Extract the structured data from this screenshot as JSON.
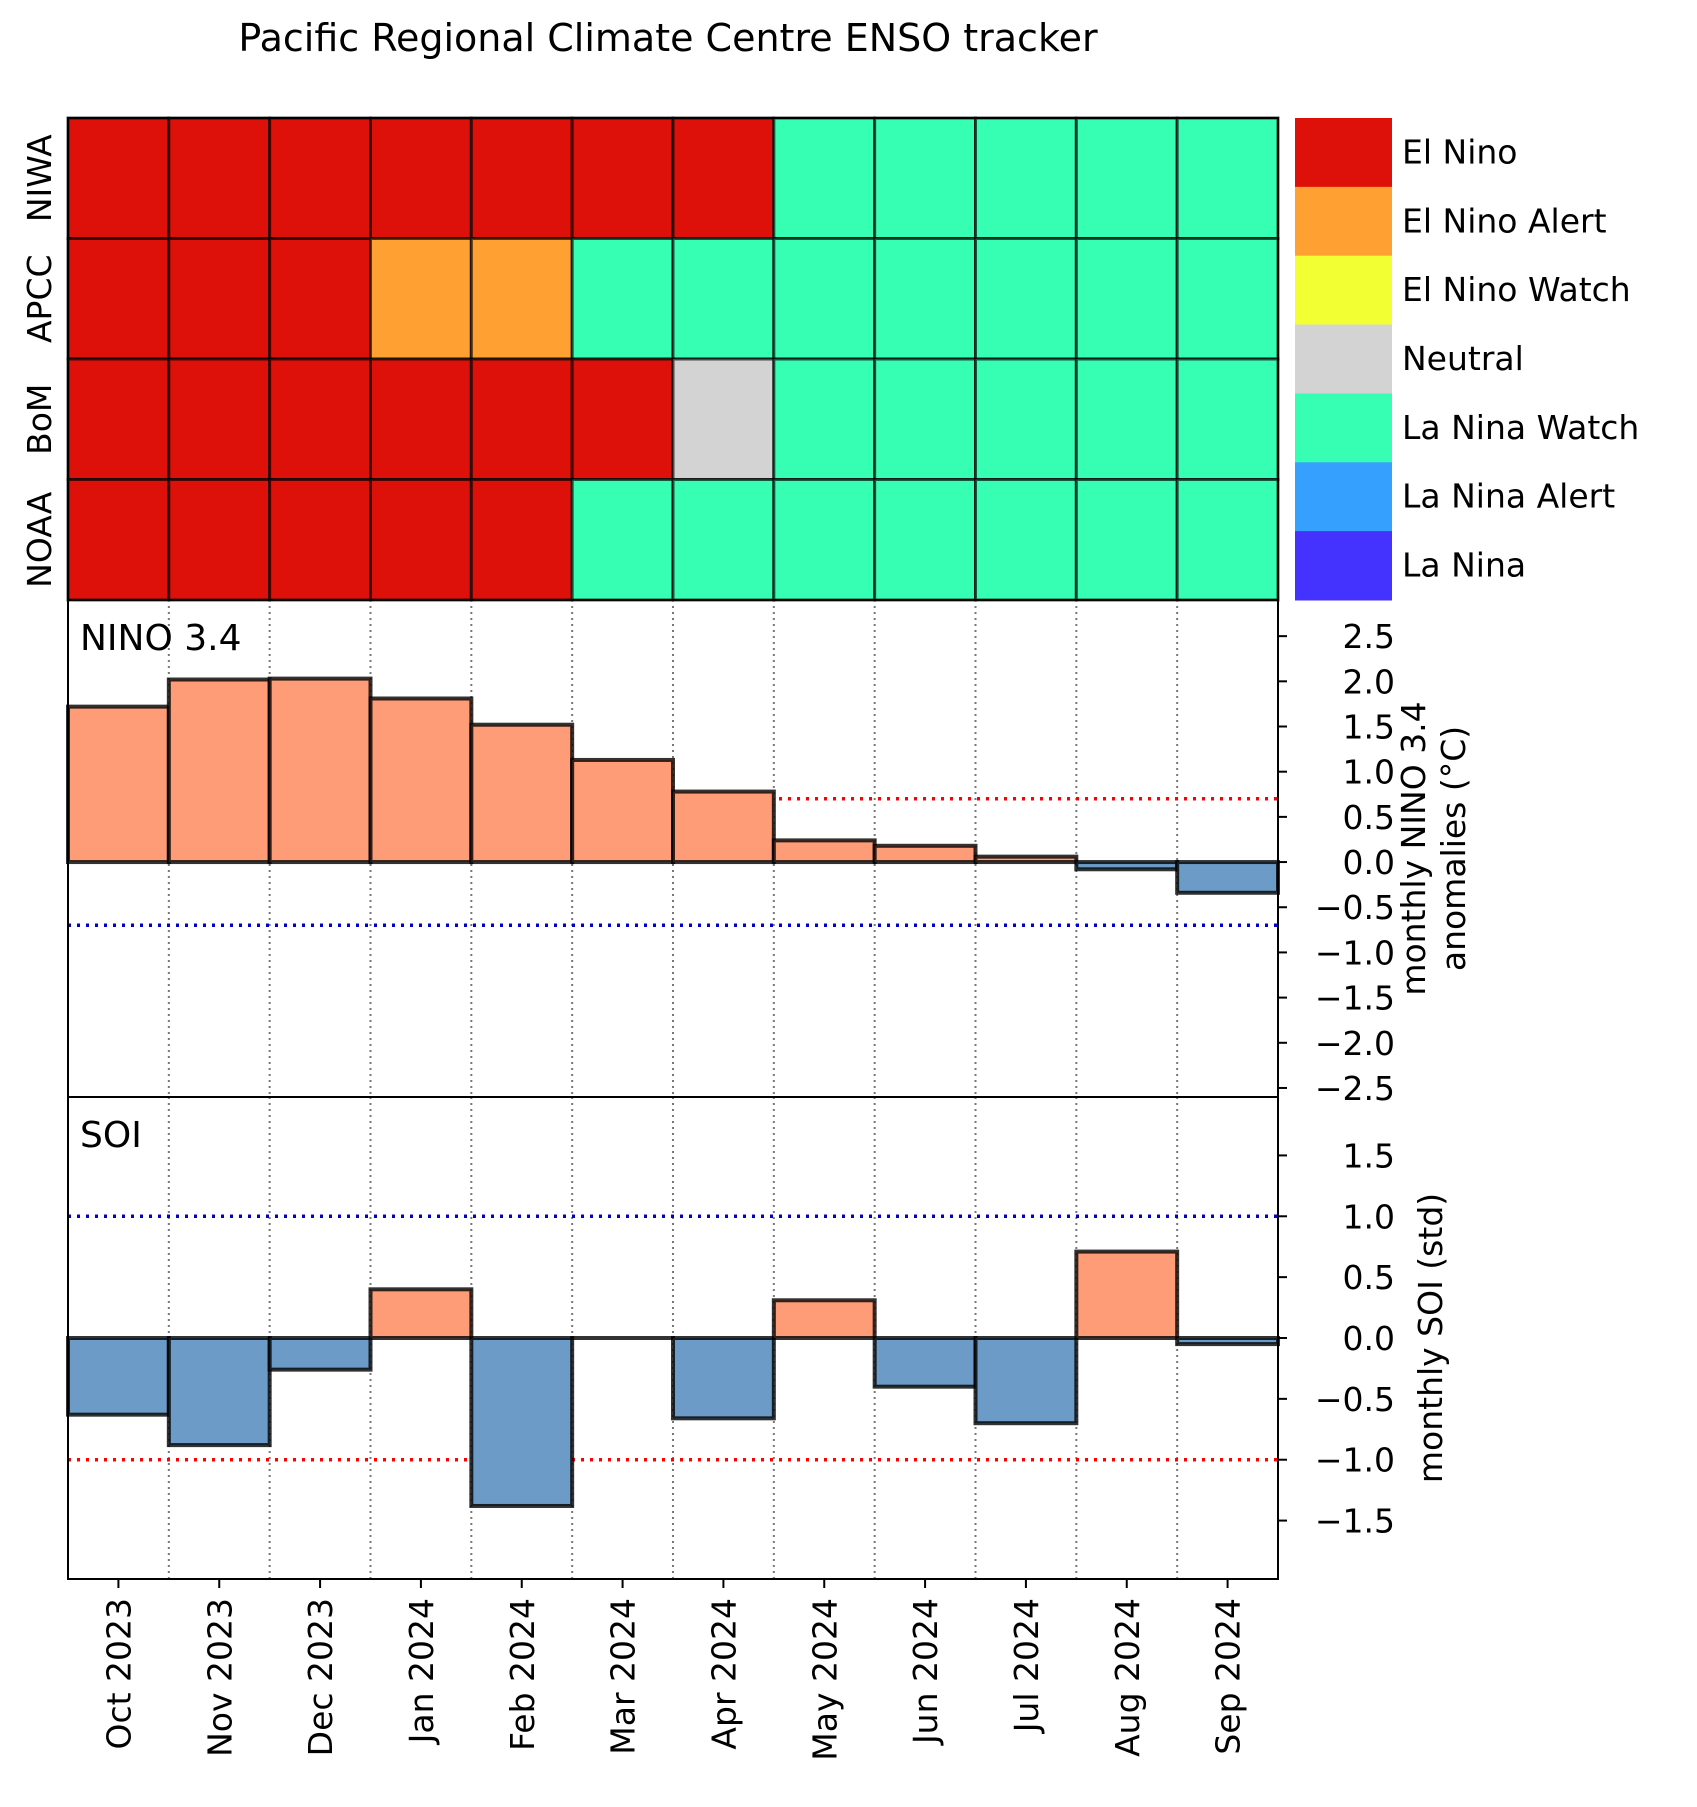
{
  "colors": {
    "el_nino": "#dd1109",
    "el_nino_alert": "#ffa032",
    "el_nino_watch": "#f2ff32",
    "neutral": "#d3d3d3",
    "la_nina_watch": "#36ffb4",
    "la_nina_alert": "#36a0ff",
    "la_nina": "#4432ff",
    "positive_bar": "#ff9c78",
    "negative_bar": "#6b9bc6",
    "red_threshold": "#ff0000",
    "blue_threshold": "#0000cc"
  },
  "chart_data": [
    {
      "type": "heatmap",
      "title": "Pacific Regional Climate Centre ENSO tracker",
      "months": [
        "Oct 2023",
        "Nov 2023",
        "Dec 2023",
        "Jan 2024",
        "Feb 2024",
        "Mar 2024",
        "Apr 2024",
        "May 2024",
        "Jun 2024",
        "Jul 2024",
        "Aug 2024",
        "Sep 2024"
      ],
      "rows": [
        {
          "name": "NIWA",
          "states": [
            "El Nino",
            "El Nino",
            "El Nino",
            "El Nino",
            "El Nino",
            "El Nino",
            "El Nino",
            "La Nina Watch",
            "La Nina Watch",
            "La Nina Watch",
            "La Nina Watch",
            "La Nina Watch"
          ]
        },
        {
          "name": "APCC",
          "states": [
            "El Nino",
            "El Nino",
            "El Nino",
            "El Nino Alert",
            "El Nino Alert",
            "La Nina Watch",
            "La Nina Watch",
            "La Nina Watch",
            "La Nina Watch",
            "La Nina Watch",
            "La Nina Watch",
            "La Nina Watch"
          ]
        },
        {
          "name": "BoM",
          "states": [
            "El Nino",
            "El Nino",
            "El Nino",
            "El Nino",
            "El Nino",
            "El Nino",
            "Neutral",
            "La Nina Watch",
            "La Nina Watch",
            "La Nina Watch",
            "La Nina Watch",
            "La Nina Watch"
          ]
        },
        {
          "name": "NOAA",
          "states": [
            "El Nino",
            "El Nino",
            "El Nino",
            "El Nino",
            "El Nino",
            "La Nina Watch",
            "La Nina Watch",
            "La Nina Watch",
            "La Nina Watch",
            "La Nina Watch",
            "La Nina Watch",
            "La Nina Watch"
          ]
        }
      ],
      "legend": [
        "El Nino",
        "El Nino Alert",
        "El Nino Watch",
        "Neutral",
        "La Nina Watch",
        "La Nina Alert",
        "La Nina"
      ],
      "legend_keys": [
        "el_nino",
        "el_nino_alert",
        "el_nino_watch",
        "neutral",
        "la_nina_watch",
        "la_nina_alert",
        "la_nina"
      ]
    },
    {
      "type": "bar",
      "label": "NINO 3.4",
      "ylabel": [
        "monthly NINO 3.4",
        "anomalies (°C)"
      ],
      "ylim": [
        -2.6,
        2.9
      ],
      "yticks": [
        2.5,
        2.0,
        1.5,
        1.0,
        0.5,
        0.0,
        -0.5,
        -1.0,
        -1.5,
        -2.0,
        -2.5
      ],
      "ytick_labels": [
        "2.5",
        "2.0",
        "1.5",
        "1.0",
        "0.5",
        "0.0",
        "−0.5",
        "−1.0",
        "−1.5",
        "−2.0",
        "−2.5"
      ],
      "thresholds": {
        "red": 0.7,
        "blue": -0.7
      },
      "values": [
        1.72,
        2.02,
        2.03,
        1.81,
        1.52,
        1.13,
        0.78,
        0.24,
        0.18,
        0.06,
        -0.08,
        -0.34
      ]
    },
    {
      "type": "bar",
      "label": "SOI",
      "ylabel": [
        "monthly SOI (std)"
      ],
      "ylim": [
        -1.98,
        1.98
      ],
      "yticks": [
        1.5,
        1.0,
        0.5,
        0.0,
        -0.5,
        -1.0,
        -1.5
      ],
      "ytick_labels": [
        "1.5",
        "1.0",
        "0.5",
        "0.0",
        "−0.5",
        "−1.0",
        "−1.5"
      ],
      "thresholds": {
        "blue": 1.0,
        "red": -1.0
      },
      "values": [
        -0.63,
        -0.88,
        -0.26,
        0.4,
        -1.38,
        0.0,
        -0.66,
        0.31,
        -0.4,
        -0.7,
        0.71,
        -0.05
      ]
    }
  ]
}
